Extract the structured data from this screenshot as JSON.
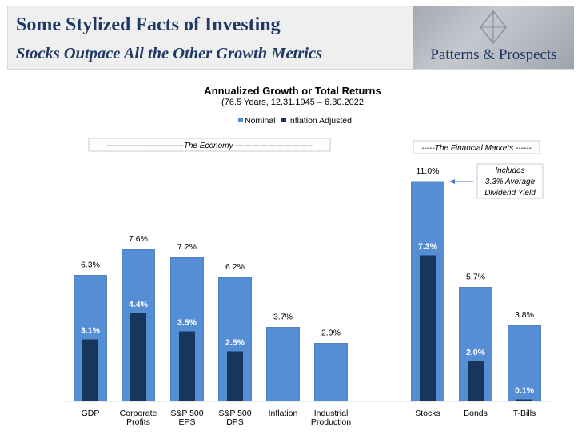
{
  "header": {
    "title": "Some Stylized Facts of Investing",
    "subtitle": "Stocks Outpace All the Other Growth Metrics",
    "logo_text": "Patterns & Prospects",
    "logo_icon": "diamond-monogram-icon"
  },
  "colors": {
    "nominal": "#558ed5",
    "inflation_adjusted": "#17365d",
    "header_text": "#1f3864"
  },
  "chart_data": {
    "type": "bar",
    "title": "Annualized Growth or Total Returns",
    "subtitle": "(76.5 Years, 12.31.1945 – 6.30.2022",
    "legend": {
      "placement": "top-center",
      "entries": [
        "Nominal",
        "Inflation Adjusted"
      ]
    },
    "ylim": [
      0,
      11.6
    ],
    "grid": false,
    "groups": [
      {
        "label": "-----------------------------The Economy -----------------------------"
      },
      {
        "label": "-----The Financial Markets ------"
      }
    ],
    "categories": [
      {
        "lines": [
          "GDP"
        ]
      },
      {
        "lines": [
          "Corporate",
          "Profits"
        ]
      },
      {
        "lines": [
          "S&P 500",
          "EPS"
        ]
      },
      {
        "lines": [
          "S&P 500",
          "DPS"
        ]
      },
      {
        "lines": [
          "Inflation"
        ]
      },
      {
        "lines": [
          "Industrial",
          "Production"
        ]
      },
      {
        "lines": [
          "Stocks"
        ]
      },
      {
        "lines": [
          "Bonds"
        ]
      },
      {
        "lines": [
          "T-Bills"
        ]
      }
    ],
    "series": [
      {
        "name": "Nominal",
        "values": [
          6.3,
          7.6,
          7.2,
          6.2,
          3.7,
          2.9,
          11.0,
          5.7,
          3.8
        ],
        "labels": [
          "6.3%",
          "7.6%",
          "7.2%",
          "6.2%",
          "3.7%",
          "2.9%",
          "11.0%",
          "5.7%",
          "3.8%"
        ]
      },
      {
        "name": "Inflation Adjusted",
        "values": [
          3.1,
          4.4,
          3.5,
          2.5,
          null,
          null,
          7.3,
          2.0,
          0.1
        ],
        "labels": [
          "3.1%",
          "4.4%",
          "3.5%",
          "2.5%",
          "",
          "",
          "7.3%",
          "2.0%",
          "0.1%"
        ]
      }
    ],
    "annotation": {
      "lines": [
        "Includes",
        "3.3% Average",
        "Dividend Yield"
      ],
      "target": "Stocks"
    }
  }
}
